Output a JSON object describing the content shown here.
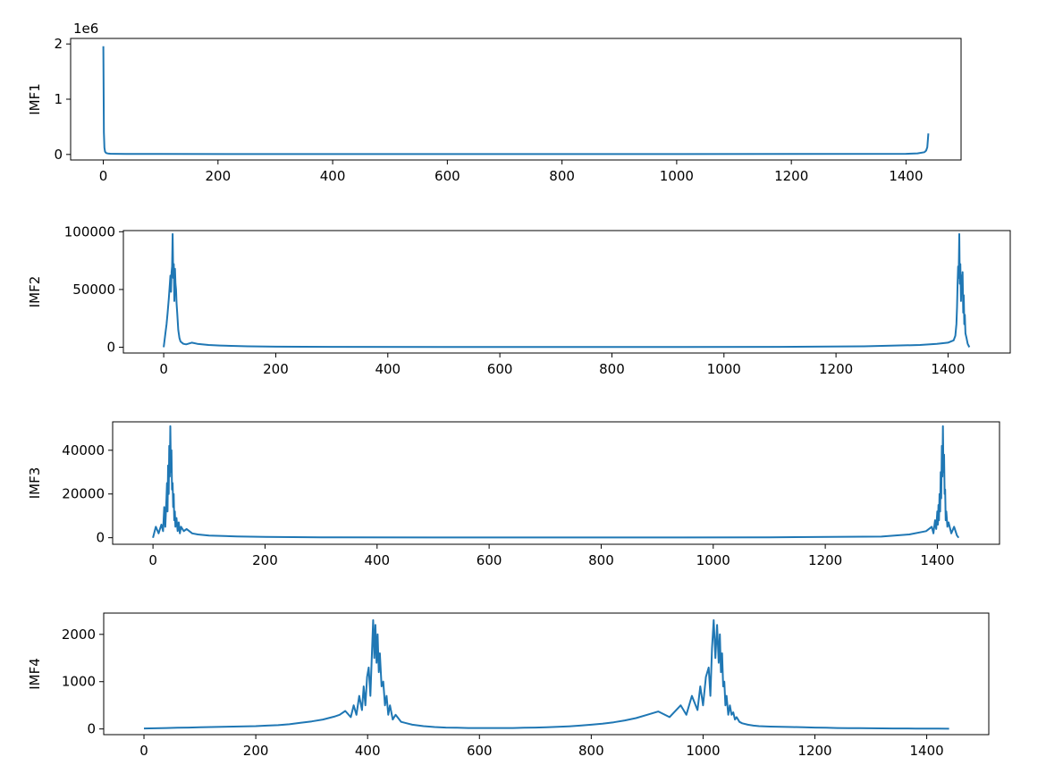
{
  "line_color": "#1f77b4",
  "chart_data": [
    {
      "type": "line",
      "ylabel": "IMF1",
      "xlim": [
        -57,
        1496
      ],
      "ylim": [
        -100000,
        2100000
      ],
      "xticks": [
        0,
        200,
        400,
        600,
        800,
        1000,
        1200,
        1400
      ],
      "yticks": [
        0,
        1,
        2
      ],
      "ytick_scale": 1000000,
      "offset_label": "1e6",
      "grid": false,
      "series": [
        {
          "x": [
            0,
            1,
            2,
            3,
            5,
            8,
            12,
            20,
            40,
            100,
            300,
            600,
            900,
            1200,
            1400,
            1420,
            1432,
            1435,
            1437,
            1438,
            1439
          ],
          "values": [
            1960000,
            400000,
            120000,
            50000,
            25000,
            18000,
            14000,
            11000,
            9000,
            8000,
            7000,
            7000,
            7000,
            8000,
            12000,
            20000,
            40000,
            70000,
            130000,
            250000,
            380000
          ]
        }
      ]
    },
    {
      "type": "line",
      "ylabel": "IMF2",
      "xlim": [
        -72,
        1511
      ],
      "ylim": [
        -5000,
        101000
      ],
      "xticks": [
        0,
        200,
        400,
        600,
        800,
        1000,
        1200,
        1400
      ],
      "yticks": [
        0,
        50000,
        100000
      ],
      "grid": false,
      "series": [
        {
          "x": [
            0,
            3,
            5,
            7,
            9,
            11,
            12,
            13,
            14,
            15,
            16,
            17,
            18,
            19,
            20,
            21,
            22,
            23,
            24,
            26,
            28,
            30,
            35,
            40,
            50,
            60,
            80,
            100,
            150,
            200,
            300,
            500,
            700,
            900,
            1100,
            1250,
            1350,
            1380,
            1400,
            1410,
            1413,
            1415,
            1416,
            1417,
            1418,
            1419,
            1420,
            1421,
            1422,
            1423,
            1424,
            1425,
            1426,
            1427,
            1428,
            1429,
            1430,
            1431,
            1433,
            1435,
            1438
          ],
          "values": [
            0,
            12000,
            20000,
            30000,
            42000,
            55000,
            62000,
            48000,
            65000,
            70000,
            98000,
            60000,
            72000,
            40000,
            68000,
            55000,
            50000,
            38000,
            30000,
            15000,
            8000,
            5000,
            3000,
            2500,
            4000,
            3000,
            2000,
            1500,
            800,
            500,
            300,
            200,
            200,
            200,
            300,
            800,
            2000,
            3000,
            4000,
            6000,
            10000,
            20000,
            35000,
            55000,
            70000,
            60000,
            98000,
            55000,
            72000,
            40000,
            62000,
            50000,
            65000,
            30000,
            45000,
            20000,
            28000,
            12000,
            8000,
            3000,
            0
          ]
        }
      ]
    },
    {
      "type": "line",
      "ylabel": "IMF3",
      "xlim": [
        -72,
        1511
      ],
      "ylim": [
        -3000,
        53000
      ],
      "xticks": [
        0,
        200,
        400,
        600,
        800,
        1000,
        1200,
        1400
      ],
      "yticks": [
        0,
        20000,
        40000
      ],
      "grid": false,
      "series": [
        {
          "x": [
            0,
            5,
            10,
            15,
            18,
            20,
            22,
            24,
            25,
            26,
            27,
            28,
            29,
            30,
            31,
            32,
            33,
            34,
            35,
            36,
            37,
            38,
            39,
            40,
            42,
            44,
            46,
            48,
            50,
            55,
            60,
            70,
            80,
            100,
            150,
            200,
            300,
            500,
            700,
            900,
            1100,
            1300,
            1350,
            1380,
            1390,
            1393,
            1396,
            1398,
            1400,
            1401,
            1402,
            1403,
            1404,
            1405,
            1406,
            1407,
            1408,
            1409,
            1410,
            1411,
            1412,
            1413,
            1414,
            1415,
            1416,
            1418,
            1420,
            1425,
            1430,
            1435,
            1438
          ],
          "values": [
            0,
            5000,
            2000,
            6000,
            3000,
            14000,
            5000,
            18000,
            25000,
            12000,
            33000,
            20000,
            42000,
            28000,
            51000,
            30000,
            40000,
            22000,
            25000,
            14000,
            20000,
            8000,
            12000,
            5000,
            9000,
            3000,
            7000,
            2000,
            5000,
            3000,
            4000,
            2000,
            1500,
            1000,
            600,
            400,
            200,
            100,
            100,
            100,
            200,
            500,
            1500,
            3000,
            5000,
            2000,
            8000,
            4000,
            12000,
            6000,
            15000,
            8000,
            20000,
            12000,
            30000,
            18000,
            42000,
            28000,
            51000,
            30000,
            38000,
            20000,
            22000,
            8000,
            12000,
            5000,
            7000,
            2000,
            5000,
            1000,
            0
          ]
        }
      ]
    },
    {
      "type": "line",
      "ylabel": "IMF4",
      "xlim": [
        -72,
        1511
      ],
      "ylim": [
        -120,
        2450
      ],
      "xticks": [
        0,
        200,
        400,
        600,
        800,
        1000,
        1200,
        1400
      ],
      "yticks": [
        0,
        1000,
        2000
      ],
      "grid": false,
      "series": [
        {
          "x": [
            0,
            20,
            40,
            60,
            80,
            100,
            120,
            140,
            160,
            180,
            200,
            220,
            240,
            260,
            280,
            300,
            320,
            340,
            350,
            360,
            370,
            375,
            380,
            385,
            390,
            393,
            396,
            399,
            402,
            405,
            408,
            410,
            412,
            414,
            416,
            418,
            420,
            422,
            425,
            428,
            431,
            434,
            437,
            440,
            445,
            450,
            460,
            470,
            480,
            500,
            520,
            540,
            560,
            580,
            600,
            620,
            640,
            660,
            680,
            700,
            720,
            740,
            760,
            780,
            800,
            820,
            840,
            860,
            880,
            900,
            920,
            940,
            960,
            970,
            980,
            990,
            995,
            1000,
            1005,
            1010,
            1013,
            1016,
            1019,
            1022,
            1025,
            1028,
            1030,
            1032,
            1034,
            1036,
            1038,
            1040,
            1042,
            1045,
            1048,
            1051,
            1054,
            1057,
            1060,
            1065,
            1070,
            1080,
            1090,
            1100,
            1120,
            1140,
            1160,
            1180,
            1200,
            1220,
            1240,
            1260,
            1280,
            1300,
            1320,
            1340,
            1360,
            1380,
            1400,
            1420,
            1440
          ],
          "values": [
            10,
            15,
            20,
            25,
            30,
            35,
            40,
            45,
            50,
            55,
            60,
            70,
            80,
            100,
            130,
            160,
            200,
            260,
            300,
            380,
            250,
            500,
            300,
            700,
            400,
            900,
            500,
            1100,
            1300,
            700,
            1700,
            2300,
            1500,
            2200,
            1400,
            2000,
            1200,
            1600,
            900,
            1000,
            500,
            700,
            300,
            500,
            200,
            300,
            150,
            120,
            90,
            60,
            40,
            30,
            25,
            20,
            20,
            20,
            20,
            20,
            25,
            30,
            35,
            45,
            55,
            70,
            90,
            110,
            140,
            180,
            230,
            300,
            370,
            250,
            500,
            300,
            700,
            400,
            900,
            500,
            1100,
            1300,
            700,
            1700,
            2300,
            1500,
            2200,
            1400,
            2000,
            1200,
            1600,
            900,
            1000,
            500,
            700,
            300,
            500,
            300,
            350,
            200,
            250,
            150,
            120,
            90,
            70,
            60,
            50,
            45,
            40,
            35,
            30,
            25,
            20,
            18,
            16,
            14,
            12,
            10,
            10,
            8,
            8,
            6,
            5
          ]
        }
      ]
    }
  ]
}
